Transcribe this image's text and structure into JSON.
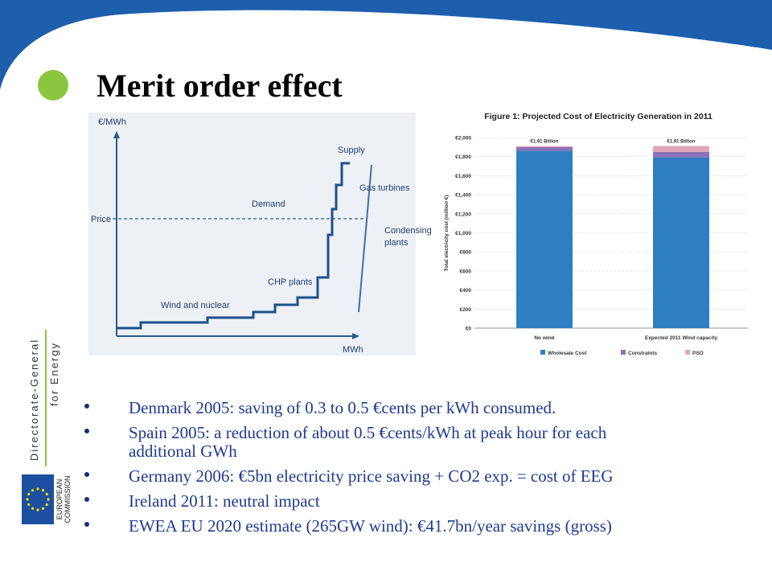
{
  "title": "Merit order effect",
  "sidebar": {
    "department": "Directorate-General",
    "department_line2": "for Energy",
    "logo_line1": "EUROPEAN",
    "logo_line2": "COMMISSION"
  },
  "diagram": {
    "y_axis_label": "€/MWh",
    "x_axis_label": "MWh",
    "price_label": "Price",
    "supply_label": "Supply",
    "demand_label": "Demand",
    "gas_label": "Gas turbines",
    "condensing_label_1": "Condensing",
    "condensing_label_2": "plants",
    "chp_label": "CHP plants",
    "wind_label": "Wind and nuclear"
  },
  "bullets": [
    {
      "lines": [
        "Denmark 2005: saving of 0.3 to 0.5 €cents per kWh consumed."
      ]
    },
    {
      "lines": [
        "Spain 2005: a reduction of about 0.5 €cents/kWh at peak hour for each",
        "additional GWh"
      ]
    },
    {
      "lines": [
        "Germany 2006: €5bn electricity price saving + CO2 exp. ="
      ],
      "note": "cost of EEG"
    },
    {
      "lines": [
        "Ireland 2011: neutral impact"
      ]
    },
    {
      "lines": [
        "EWEA EU 2020 estimate (265GW wind): €41.7bn/year savings (gross)"
      ]
    }
  ],
  "chart_data": {
    "type": "stacked_bar",
    "title": "Figure 1: Projected Cost of Electricity Generation in 2011",
    "y_label": "Total electricity cost (million €)",
    "categories": [
      "No wind",
      "Expected 2011 Wind capacity"
    ],
    "annotations": [
      "€1.91 Billion",
      "€1.91 Billion"
    ],
    "series": [
      {
        "name": "Wholesale Cost",
        "color": "#2e7fc2",
        "values": [
          1860,
          1790
        ]
      },
      {
        "name": "Constraints",
        "color": "#8b72b8",
        "values": [
          40,
          60
        ]
      },
      {
        "name": "PSO",
        "color": "#e3a5bb",
        "values": [
          10,
          60
        ]
      }
    ],
    "ylim": [
      0,
      2000
    ],
    "yticks": [
      {
        "value": 0,
        "label": "€0"
      },
      {
        "value": 200,
        "label": "€200"
      },
      {
        "value": 400,
        "label": "€400"
      },
      {
        "value": 600,
        "label": "€600"
      },
      {
        "value": 800,
        "label": "€800"
      },
      {
        "value": 1000,
        "label": "€1,000"
      },
      {
        "value": 1200,
        "label": "€1,200"
      },
      {
        "value": 1400,
        "label": "€1,400"
      },
      {
        "value": 1600,
        "label": "€1,600"
      },
      {
        "value": 1800,
        "label": "€1,800"
      },
      {
        "value": 2000,
        "label": "€2,000"
      }
    ],
    "grid": true,
    "legend": "bottom"
  }
}
